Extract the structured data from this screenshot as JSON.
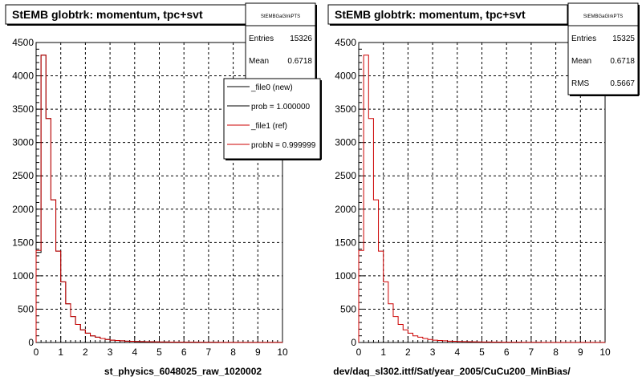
{
  "chart_data": [
    {
      "type": "histogram",
      "title": "StEMB globtrk: momentum, tpc+svt",
      "xlabel": "st_physics_6048025_raw_1020002",
      "ylabel": "",
      "xlim": [
        0,
        10
      ],
      "ylim": [
        0,
        4500
      ],
      "x_ticks": [
        "0",
        "1",
        "2",
        "3",
        "4",
        "5",
        "6",
        "7",
        "8",
        "9",
        "10"
      ],
      "y_ticks": [
        "0",
        "500",
        "1000",
        "1500",
        "2000",
        "2500",
        "3000",
        "3500",
        "4000",
        "4500"
      ],
      "grid": true,
      "bin_width": 0.2,
      "series": [
        {
          "name": "_file0 (new)",
          "color": "#000000",
          "values": [
            1350,
            4310,
            3360,
            2140,
            1370,
            910,
            580,
            390,
            270,
            190,
            140,
            100,
            80,
            60,
            45,
            35,
            30,
            25,
            20,
            18,
            15,
            13,
            12,
            10,
            9,
            8,
            7,
            6,
            6,
            5,
            5,
            4,
            4,
            3,
            3,
            3,
            3,
            2,
            2,
            2,
            2,
            2,
            2,
            1,
            1,
            1,
            1,
            1,
            1,
            1
          ]
        },
        {
          "name": "_file1 (ref)",
          "color": "#cc0000",
          "values": [
            1380,
            4310,
            3360,
            2140,
            1370,
            910,
            580,
            390,
            270,
            190,
            140,
            100,
            80,
            60,
            45,
            35,
            30,
            25,
            20,
            18,
            15,
            13,
            12,
            10,
            9,
            8,
            7,
            6,
            6,
            5,
            5,
            4,
            4,
            3,
            3,
            3,
            3,
            2,
            2,
            2,
            2,
            2,
            2,
            1,
            1,
            1,
            1,
            1,
            1,
            1
          ]
        }
      ],
      "stats": {
        "header": "StEMBGaGlrkPTS",
        "rows": [
          {
            "label": "Entries",
            "value": "15326"
          },
          {
            "label": "Mean",
            "value": "0.6718"
          }
        ]
      },
      "legend": {
        "placement": "top-right",
        "entries": [
          {
            "text": "_file0 (new)",
            "color": "#000000"
          },
          {
            "text": "prob = 1.000000",
            "color": "#000000"
          },
          {
            "text": "_file1 (ref)",
            "color": "#cc0000"
          },
          {
            "text": "probN = 0.999999",
            "color": "#cc0000"
          }
        ]
      }
    },
    {
      "type": "histogram",
      "title": "StEMB globtrk: momentum, tpc+svt",
      "xlabel": "dev/daq_sl302.ittf/Sat/year_2005/CuCu200_MinBias/",
      "ylabel": "",
      "xlim": [
        0,
        10
      ],
      "ylim": [
        0,
        4500
      ],
      "x_ticks": [
        "0",
        "1",
        "2",
        "3",
        "4",
        "5",
        "6",
        "7",
        "8",
        "9",
        "10"
      ],
      "y_ticks": [
        "0",
        "500",
        "1000",
        "1500",
        "2000",
        "2500",
        "3000",
        "3500",
        "4000",
        "4500"
      ],
      "grid": true,
      "bin_width": 0.2,
      "series": [
        {
          "name": "",
          "color": "#cc0000",
          "values": [
            1380,
            4310,
            3360,
            2140,
            1370,
            910,
            580,
            390,
            270,
            190,
            140,
            100,
            80,
            60,
            45,
            35,
            30,
            25,
            20,
            18,
            15,
            13,
            12,
            10,
            9,
            8,
            7,
            6,
            6,
            5,
            5,
            4,
            4,
            3,
            3,
            3,
            3,
            2,
            2,
            2,
            2,
            2,
            2,
            1,
            1,
            1,
            1,
            1,
            1,
            1
          ]
        }
      ],
      "stats": {
        "header": "StEMBGaGlrkPTS",
        "rows": [
          {
            "label": "Entries",
            "value": "15325"
          },
          {
            "label": "Mean",
            "value": "0.6718"
          },
          {
            "label": "RMS",
            "value": "0.5667"
          }
        ]
      }
    }
  ]
}
